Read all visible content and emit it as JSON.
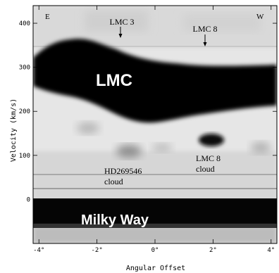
{
  "figure": {
    "x_axis_label": "Angular Offset",
    "y_axis_label": "Velocity (km/s)",
    "x_ticks": [
      {
        "value": -4,
        "label": "-4°"
      },
      {
        "value": -2,
        "label": "-2°"
      },
      {
        "value": 0,
        "label": "0°"
      },
      {
        "value": 2,
        "label": "2°"
      },
      {
        "value": 4,
        "label": "4°"
      }
    ],
    "y_ticks": [
      {
        "value": 0,
        "label": "0"
      },
      {
        "value": 100,
        "label": "100"
      },
      {
        "value": 200,
        "label": "200"
      },
      {
        "value": 300,
        "label": "300"
      },
      {
        "value": 400,
        "label": "400"
      }
    ],
    "x_range": [
      -4.2,
      4.2
    ],
    "y_range": [
      -100,
      440
    ],
    "corner_left": "E",
    "corner_right": "W",
    "region_labels": {
      "lmc": "LMC",
      "milky_way": "Milky Way"
    },
    "markers": {
      "lmc3": "LMC 3",
      "lmc8": "LMC 8"
    },
    "clouds": {
      "hd_line1": "HD269546",
      "hd_line2": "cloud",
      "lmc8_line1": "LMC 8",
      "lmc8_line2": "cloud"
    }
  }
}
